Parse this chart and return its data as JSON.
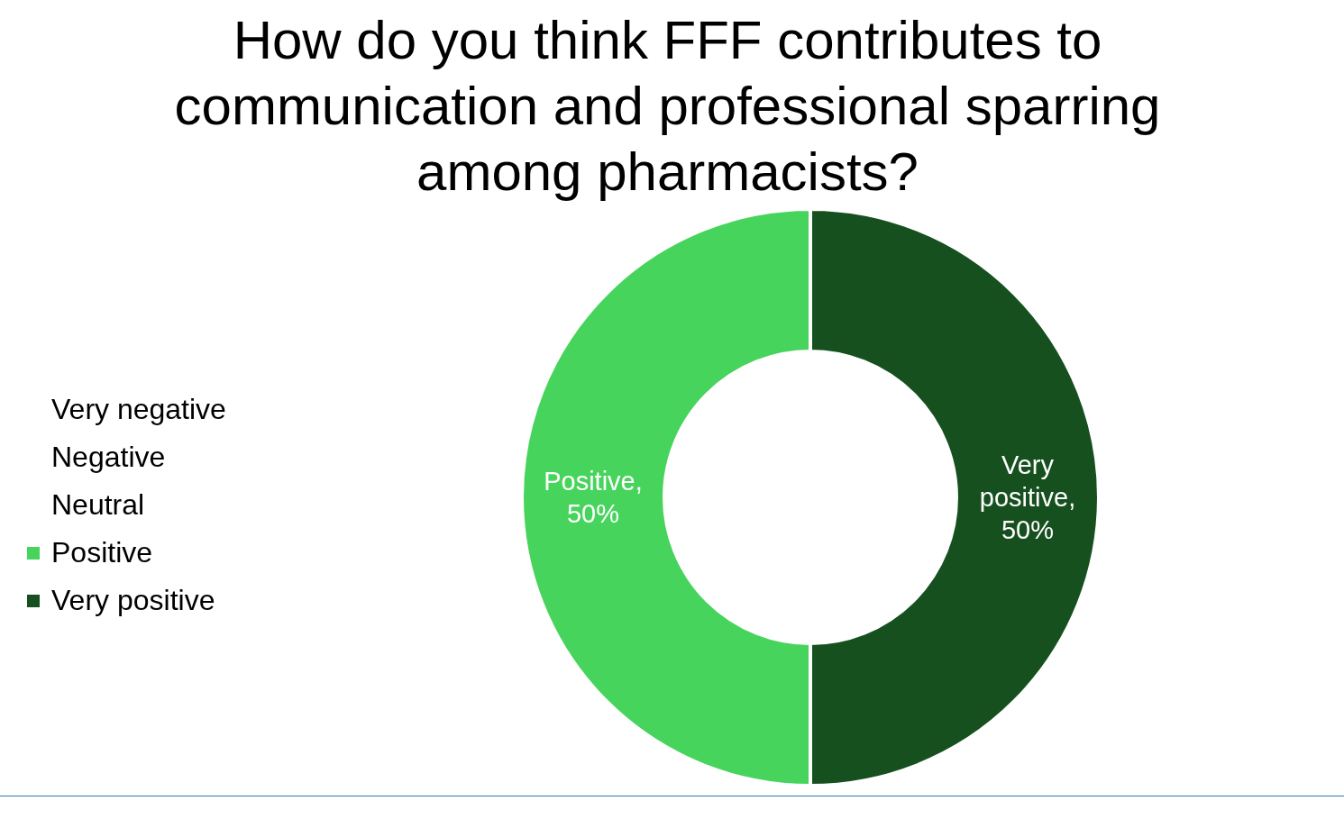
{
  "chart_data": {
    "type": "donut",
    "title": "How do you think FFF contributes to communication and professional sparring among pharmacists?",
    "categories": [
      "Very negative",
      "Negative",
      "Neutral",
      "Positive",
      "Very positive"
    ],
    "values": [
      0,
      0,
      0,
      50,
      50
    ],
    "colors": [
      "#ffffff",
      "#ffffff",
      "#ffffff",
      "#47d45c",
      "#17501f"
    ],
    "value_labels": [
      null,
      null,
      null,
      "Positive, 50%",
      "Very positive, 50%"
    ],
    "legend": "left"
  }
}
